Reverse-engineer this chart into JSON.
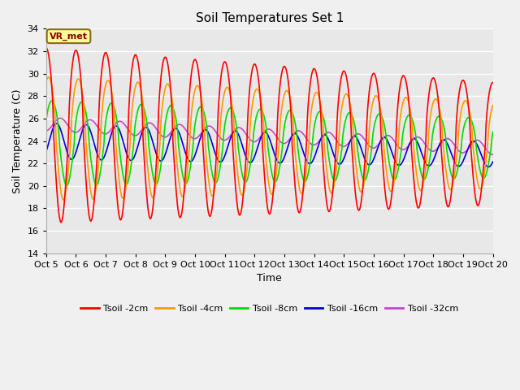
{
  "title": "Soil Temperatures Set 1",
  "xlabel": "Time",
  "ylabel": "Soil Temperature (C)",
  "ylim": [
    14,
    34
  ],
  "annotation": "VR_met",
  "line_colors": {
    "2cm": "#ff0000",
    "4cm": "#ff9900",
    "8cm": "#00dd00",
    "16cm": "#0000dd",
    "32cm": "#cc44cc"
  },
  "legend_labels": [
    "Tsoil -2cm",
    "Tsoil -4cm",
    "Tsoil -8cm",
    "Tsoil -16cm",
    "Tsoil -32cm"
  ],
  "bg_color": "#e8e8e8",
  "fig_bg_color": "#f0f0f0",
  "tick_labels": [
    "Oct 5",
    "Oct 6",
    "Oct 7",
    "Oct 8",
    "Oct 9",
    "Oct 10",
    "Oct 11",
    "Oct 12",
    "Oct 13",
    "Oct 14",
    "Oct 15",
    "Oct 16",
    "Oct 17",
    "Oct 18",
    "Oct 19",
    "Oct 20"
  ],
  "yticks": [
    14,
    16,
    18,
    20,
    22,
    24,
    26,
    28,
    30,
    32,
    34
  ]
}
